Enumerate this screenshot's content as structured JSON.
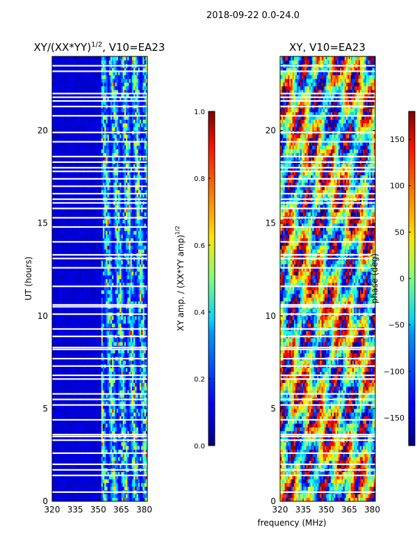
{
  "figure": {
    "suptitle": "2018-09-22 0.0-24.0",
    "xlabel_shared": "frequency (MHz)"
  },
  "chart_data": [
    {
      "type": "heatmap",
      "title": "XY/(XX*YY)^1/2, V10=EA23",
      "title_main": "XY/(XX*YY)",
      "title_exp": "1/2",
      "title_tail": ", V10=EA23",
      "ylabel": "UT (hours)",
      "xlim": [
        320,
        382
      ],
      "ylim": [
        0,
        24
      ],
      "xticks": [
        320,
        335,
        350,
        365,
        380
      ],
      "yticks": [
        0,
        5,
        10,
        15,
        20
      ],
      "colorbar": {
        "label": "XY amp. / (XX*YY amp)^1/2",
        "label_main": "XY amp. / (XX*YY amp)",
        "label_exp": "1/2",
        "range": [
          0.0,
          1.0
        ],
        "ticks": [
          "0.0",
          "0.2",
          "0.4",
          "0.6",
          "0.8",
          "1.0"
        ],
        "colormap": "jet"
      },
      "active_band_mhz": [
        352,
        382
      ],
      "flagged_hours": [
        0.5,
        1.4,
        1.7,
        2.0,
        2.6,
        3.3,
        3.5,
        3.6,
        4.4,
        5.2,
        5.5,
        5.8,
        6.6,
        6.8,
        7.3,
        7.7,
        8.2,
        8.3,
        8.9,
        9.3,
        10.1,
        10.5,
        10.6,
        11.6,
        12.6,
        13.1,
        13.3,
        14.0,
        14.8,
        15.3,
        15.8,
        16.1,
        16.3,
        16.6,
        17.0,
        17.4,
        17.8,
        18.0,
        18.3,
        18.6,
        19.4,
        19.9,
        20.8,
        21.3,
        21.6,
        21.8,
        22.0,
        23.2,
        23.5
      ]
    },
    {
      "type": "heatmap",
      "title": "XY, V10=EA23",
      "ylabel": "",
      "xlim": [
        320,
        382
      ],
      "ylim": [
        0,
        24
      ],
      "xticks": [
        320,
        335,
        350,
        365,
        380
      ],
      "yticks": [
        0,
        5,
        10,
        15,
        20
      ],
      "colorbar": {
        "label": "phase (deg)",
        "range": [
          -180,
          180
        ],
        "ticks": [
          "−150",
          "−100",
          "−50",
          "0",
          "50",
          "100",
          "150"
        ],
        "tick_values": [
          -150,
          -100,
          -50,
          0,
          50,
          100,
          150
        ],
        "colormap": "jet"
      },
      "flagged_hours": [
        0.5,
        1.4,
        1.7,
        2.0,
        2.6,
        3.3,
        3.5,
        3.6,
        4.4,
        5.2,
        5.5,
        5.8,
        6.6,
        6.8,
        7.3,
        7.7,
        8.2,
        8.3,
        8.9,
        9.3,
        10.1,
        10.5,
        10.6,
        11.6,
        12.6,
        13.1,
        13.3,
        14.0,
        14.8,
        15.3,
        15.8,
        16.1,
        16.3,
        16.6,
        17.0,
        17.4,
        17.8,
        18.0,
        18.3,
        18.6,
        19.4,
        19.9,
        20.8,
        21.3,
        21.6,
        21.8,
        22.0,
        23.2,
        23.5
      ]
    }
  ]
}
